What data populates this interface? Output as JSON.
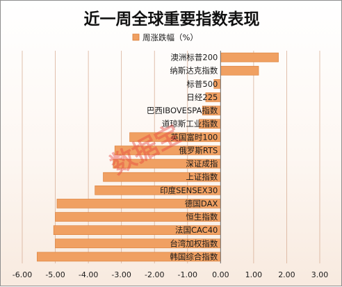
{
  "chart_data": {
    "type": "bar",
    "orientation": "horizontal",
    "title": "近一周全球重要指数表现",
    "legend": {
      "label": "周涨跌幅（%）",
      "position": "top"
    },
    "watermark": "数据宝",
    "categories": [
      "澳洲标普200",
      "纳斯达克指数",
      "标普500",
      "日经225",
      "巴西IBOVESPA指数",
      "道琼斯工业指数",
      "英国富时100",
      "俄罗斯RTS",
      "深证成指",
      "上证指数",
      "印度SENSEX30",
      "德国DAX",
      "恒生指数",
      "法国CAC40",
      "台湾加权指数",
      "韩国综合指数"
    ],
    "series": [
      {
        "name": "周涨跌幅（%）",
        "values": [
          1.75,
          1.15,
          -0.2,
          -0.45,
          -0.55,
          -0.65,
          -2.75,
          -3.2,
          -3.25,
          -3.55,
          -3.8,
          -4.95,
          -5.0,
          -5.05,
          -5.0,
          -5.55
        ]
      }
    ],
    "xlim": [
      -6,
      3
    ],
    "x_ticks": [
      "-6.00",
      "-5.00",
      "-4.00",
      "-3.00",
      "-2.00",
      "-1.00",
      "0.00",
      "1.00",
      "2.00",
      "3.00"
    ],
    "grid": true,
    "colors": {
      "bar": "#f0a062",
      "bar_edge": "#d97b34",
      "grid": "#d8b098"
    }
  }
}
